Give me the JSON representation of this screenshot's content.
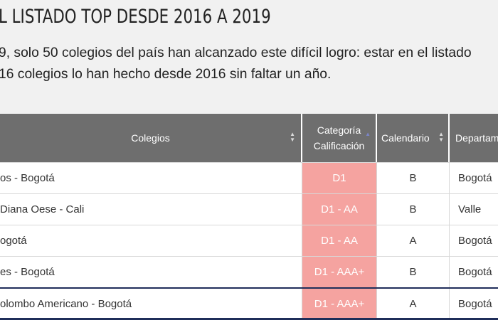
{
  "heading": "L LISTADO TOP DESDE 2016 A 2019",
  "intro": {
    "line1": "9, solo 50 colegios del país han alcanzado este difícil logro: estar en el listado",
    "line2": "16 colegios lo han hecho desde 2016 sin faltar un año."
  },
  "table": {
    "columns": {
      "colegios": "Colegios",
      "categoria_1": "Categoría",
      "categoria_2": "Calificación",
      "calendario": "Calendario",
      "departamento": "Departam"
    },
    "rows": [
      {
        "colegio": "os - Bogotá",
        "categoria": "D1",
        "calendario": "B",
        "departamento": "Bogotá"
      },
      {
        "colegio": "Diana Oese - Cali",
        "categoria": "D1 - AA",
        "calendario": "B",
        "departamento": "Valle"
      },
      {
        "colegio": "ogotá",
        "categoria": "D1 - AA",
        "calendario": "A",
        "departamento": "Bogotá"
      },
      {
        "colegio": "es - Bogotá",
        "categoria": "D1 - AAA+",
        "calendario": "B",
        "departamento": "Bogotá"
      },
      {
        "colegio": "olombo Americano - Bogotá",
        "categoria": "D1 - AAA+",
        "calendario": "A",
        "departamento": "Bogotá"
      }
    ]
  },
  "colors": {
    "header_bg": "#6e6e6e",
    "category_bg": "#f5a3a0",
    "accent": "#1f2e5a"
  }
}
